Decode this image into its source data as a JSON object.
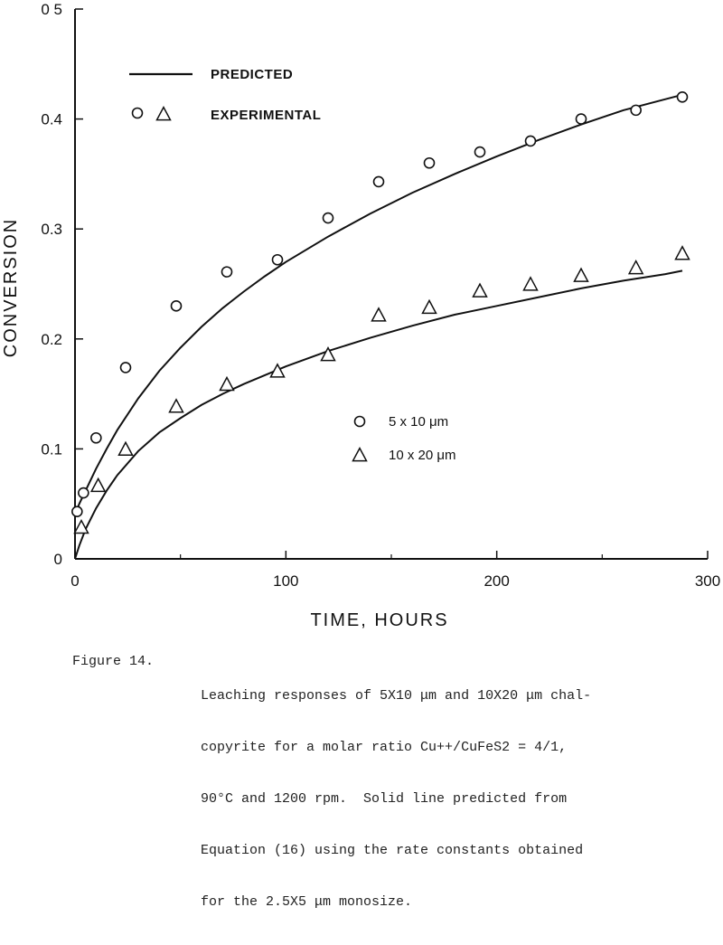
{
  "chart_data": {
    "type": "scatter",
    "xlabel": "TIME, HOURS",
    "ylabel": "CONVERSION",
    "xlim": [
      0,
      300
    ],
    "ylim": [
      0,
      0.5
    ],
    "x_ticks": [
      "0",
      "100",
      "200",
      "300"
    ],
    "y_ticks": [
      "0",
      "0.1",
      "0.2",
      "0.3",
      "0.4",
      "0 5"
    ],
    "grid": false,
    "legend": {
      "placement": "top-left",
      "line_label": "PREDICTED",
      "marker_label": "EXPERIMENTAL"
    },
    "size_legend": {
      "placement": "center-right",
      "entries": [
        {
          "marker": "circle",
          "label": "5 x 10  μm"
        },
        {
          "marker": "triangle",
          "label": "10 x 20  μm"
        }
      ]
    },
    "series": [
      {
        "name": "5 x 10 μm",
        "marker": "circle",
        "x": [
          1,
          4,
          10,
          24,
          48,
          72,
          96,
          120,
          144,
          168,
          192,
          216,
          240,
          266,
          288
        ],
        "y": [
          0.043,
          0.06,
          0.11,
          0.174,
          0.23,
          0.261,
          0.272,
          0.31,
          0.343,
          0.36,
          0.37,
          0.38,
          0.4,
          0.408,
          0.42
        ],
        "predicted": {
          "x": [
            0,
            2,
            5,
            10,
            15,
            20,
            30,
            40,
            50,
            60,
            70,
            80,
            90,
            100,
            120,
            140,
            160,
            180,
            200,
            220,
            240,
            260,
            280,
            288
          ],
          "y": [
            0.04,
            0.05,
            0.062,
            0.082,
            0.1,
            0.117,
            0.146,
            0.171,
            0.192,
            0.211,
            0.228,
            0.243,
            0.257,
            0.27,
            0.293,
            0.314,
            0.333,
            0.35,
            0.366,
            0.381,
            0.395,
            0.408,
            0.418,
            0.422
          ]
        }
      },
      {
        "name": "10 x 20 μm",
        "marker": "triangle",
        "x": [
          3,
          11,
          24,
          48,
          72,
          96,
          120,
          144,
          168,
          192,
          216,
          240,
          266,
          288
        ],
        "y": [
          0.028,
          0.066,
          0.099,
          0.138,
          0.158,
          0.17,
          0.185,
          0.221,
          0.228,
          0.243,
          0.249,
          0.257,
          0.264,
          0.277
        ],
        "predicted": {
          "x": [
            0,
            2,
            5,
            10,
            15,
            20,
            30,
            40,
            50,
            60,
            70,
            80,
            90,
            100,
            120,
            140,
            160,
            180,
            200,
            220,
            240,
            260,
            280,
            288
          ],
          "y": [
            0,
            0.012,
            0.027,
            0.046,
            0.062,
            0.076,
            0.098,
            0.115,
            0.128,
            0.14,
            0.15,
            0.159,
            0.167,
            0.175,
            0.189,
            0.201,
            0.212,
            0.222,
            0.23,
            0.238,
            0.246,
            0.253,
            0.259,
            0.262
          ]
        }
      }
    ]
  },
  "caption": {
    "label": "Figure 14.",
    "lines": [
      "Leaching responses of 5X10 μm and 10X20 μm chal-",
      "copyrite for a molar ratio Cu++/CuFeS2 = 4/1,",
      "90°C and 1200 rpm.  Solid line predicted from",
      "Equation (16) using the rate constants obtained",
      "for the 2.5X5 μm monosize."
    ]
  },
  "colors": {
    "ink": "#111111",
    "background": "#ffffff"
  }
}
